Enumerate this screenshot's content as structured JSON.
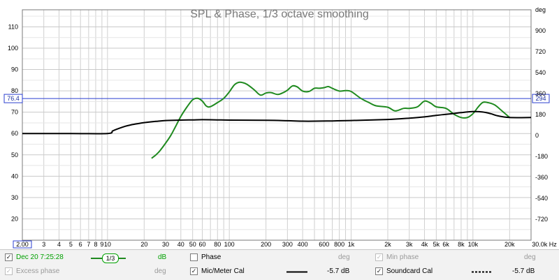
{
  "chart_data": {
    "type": "line",
    "title": "SPL & Phase, 1/3 octave smoothing",
    "xscale": "log",
    "xlim": [
      2,
      30000
    ],
    "ylim_left": [
      10,
      118
    ],
    "ylim_right": [
      -900,
      1080
    ],
    "grid": true,
    "right_axis_unit": "deg",
    "x_ticks": [
      {
        "v": 2,
        "label": "2.00"
      },
      {
        "v": 3,
        "label": "3"
      },
      {
        "v": 4,
        "label": "4"
      },
      {
        "v": 5,
        "label": "5"
      },
      {
        "v": 6,
        "label": "6"
      },
      {
        "v": 7,
        "label": "7"
      },
      {
        "v": 8,
        "label": "8"
      },
      {
        "v": 9,
        "label": "9"
      },
      {
        "v": 10,
        "label": "10"
      },
      {
        "v": 20,
        "label": "20"
      },
      {
        "v": 30,
        "label": "30"
      },
      {
        "v": 40,
        "label": "40"
      },
      {
        "v": 50,
        "label": "50"
      },
      {
        "v": 60,
        "label": "60"
      },
      {
        "v": 80,
        "label": "80"
      },
      {
        "v": 100,
        "label": "100"
      },
      {
        "v": 200,
        "label": "200"
      },
      {
        "v": 300,
        "label": "300"
      },
      {
        "v": 400,
        "label": "400"
      },
      {
        "v": 600,
        "label": "600"
      },
      {
        "v": 800,
        "label": "800"
      },
      {
        "v": 1000,
        "label": "1k"
      },
      {
        "v": 2000,
        "label": "2k"
      },
      {
        "v": 3000,
        "label": "3k"
      },
      {
        "v": 4000,
        "label": "4k"
      },
      {
        "v": 5000,
        "label": "5k"
      },
      {
        "v": 6000,
        "label": "6k"
      },
      {
        "v": 8000,
        "label": "8k"
      },
      {
        "v": 10000,
        "label": "10k"
      },
      {
        "v": 20000,
        "label": "20k"
      },
      {
        "v": 30000,
        "label": "30.0k Hz"
      }
    ],
    "y_left_ticks": [
      {
        "v": 20,
        "label": "20"
      },
      {
        "v": 30,
        "label": "30"
      },
      {
        "v": 40,
        "label": "40"
      },
      {
        "v": 50,
        "label": "50"
      },
      {
        "v": 60,
        "label": "60"
      },
      {
        "v": 70,
        "label": "70"
      },
      {
        "v": 80,
        "label": "80"
      },
      {
        "v": 90,
        "label": "90"
      },
      {
        "v": 100,
        "label": "100"
      },
      {
        "v": 110,
        "label": "110"
      }
    ],
    "y_right_ticks": [
      {
        "v": -720,
        "label": "-720"
      },
      {
        "v": -540,
        "label": "-540"
      },
      {
        "v": -360,
        "label": "-360"
      },
      {
        "v": -180,
        "label": "-180"
      },
      {
        "v": 0,
        "label": "0"
      },
      {
        "v": 180,
        "label": "180"
      },
      {
        "v": 360,
        "label": "360"
      },
      {
        "v": 540,
        "label": "540"
      },
      {
        "v": 720,
        "label": "720"
      },
      {
        "v": 900,
        "label": "900"
      },
      {
        "v": 1080,
        "label": "deg"
      }
    ],
    "cursor": {
      "y_value": 76.4,
      "left_label": "76.4",
      "right_label": "294"
    },
    "series": [
      {
        "color": "#1f8a1f",
        "x": [
          23,
          25,
          27,
          30,
          33,
          36,
          40,
          45,
          50,
          55,
          60,
          65,
          70,
          80,
          90,
          100,
          110,
          120,
          130,
          140,
          160,
          180,
          200,
          220,
          250,
          280,
          300,
          330,
          360,
          400,
          450,
          500,
          550,
          600,
          650,
          700,
          800,
          900,
          1000,
          1200,
          1400,
          1600,
          2000,
          2300,
          2700,
          3000,
          3500,
          4000,
          4500,
          5000,
          6000,
          7000,
          8000,
          9000,
          10000,
          11000,
          12000,
          13000,
          15000,
          17000,
          20000
        ],
        "values": [
          48.4,
          50,
          52,
          55.5,
          59,
          63,
          68,
          72.5,
          75.8,
          76.5,
          75.2,
          72.8,
          72.6,
          74.5,
          76.5,
          79.5,
          82.8,
          84,
          83.8,
          83,
          80.5,
          78,
          79,
          79.2,
          78.3,
          79.3,
          80.3,
          82.3,
          81.9,
          79.9,
          79.7,
          81.2,
          81.2,
          81.5,
          82,
          81.2,
          79.9,
          80.1,
          79.7,
          76.5,
          74.5,
          73,
          72.3,
          70.6,
          71.8,
          71.8,
          72.5,
          75.2,
          74.2,
          72.5,
          71.8,
          69,
          67.5,
          67.5,
          69.3,
          72.3,
          74.5,
          74.6,
          73.5,
          71,
          67.5
        ]
      },
      {
        "color": "#000000",
        "x": [
          2,
          5,
          10,
          11,
          12,
          14,
          16,
          18,
          20,
          25,
          30,
          40,
          50,
          60,
          80,
          100,
          200,
          300,
          400,
          500,
          700,
          1000,
          2000,
          3000,
          4000,
          5000,
          6000,
          7000,
          8000,
          10000,
          12000,
          14000,
          16000,
          20000,
          30000
        ],
        "values": [
          60,
          60,
          60,
          61.2,
          62.1,
          63.4,
          64.2,
          64.7,
          65.1,
          65.7,
          66.1,
          66.3,
          66.4,
          66.5,
          66.4,
          66.3,
          66.2,
          66,
          65.8,
          65.8,
          65.9,
          66.1,
          66.6,
          67.2,
          67.8,
          68.5,
          69,
          69.4,
          69.8,
          70.3,
          70.1,
          69.3,
          68.3,
          67.5,
          67.5
        ]
      }
    ]
  },
  "legend": {
    "item1": {
      "checked_glyph": "✓",
      "label": "Dec 20 7:25:28",
      "smoothing": "1/3",
      "unit": "dB"
    },
    "item2": {
      "checked_glyph": "",
      "label": "Phase",
      "unit": "deg"
    },
    "item3": {
      "checked_glyph": "✓",
      "label": "Min phase",
      "unit": "deg"
    },
    "item4": {
      "checked_glyph": "✓",
      "label": "Excess phase",
      "unit": "deg"
    },
    "item5": {
      "checked_glyph": "✓",
      "label": "Mic/Meter Cal",
      "value": "-5.7 dB"
    },
    "item6": {
      "checked_glyph": "✓",
      "label": "Soundcard Cal",
      "value": "-5.7 dB"
    }
  },
  "colors": {
    "spl": "#1f8a1f",
    "cal": "#000000",
    "cursor": "#2b3fd0",
    "grid": "#cfcfcf"
  }
}
